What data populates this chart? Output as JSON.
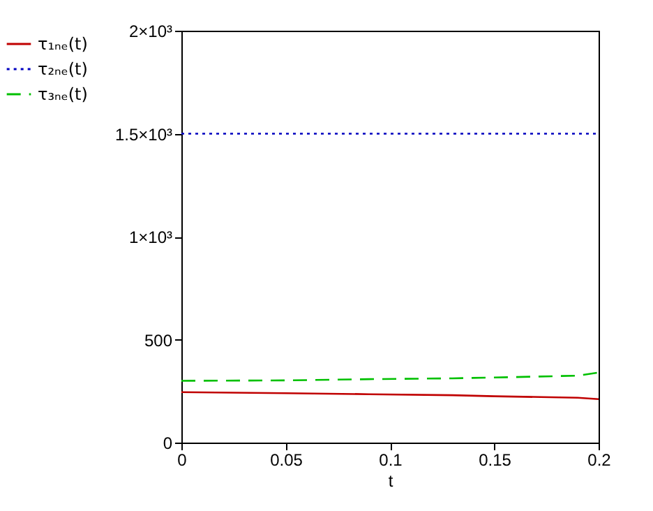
{
  "chart_data": {
    "type": "line",
    "xlabel": "t",
    "x": [
      0,
      0.05,
      0.09,
      0.13,
      0.15,
      0.19,
      0.2
    ],
    "series": [
      {
        "name": "τ₁ₙₑ(t)",
        "color": "#c00000",
        "line_style": "solid",
        "values": [
          245,
          240,
          235,
          230,
          225,
          218,
          211
        ]
      },
      {
        "name": "τ₂ₙₑ(t)",
        "color": "#0000c0",
        "line_style": "dotted",
        "values": [
          1500,
          1500,
          1500,
          1500,
          1500,
          1500,
          1500
        ]
      },
      {
        "name": "τ₃ₙₑ(t)",
        "color": "#00c000",
        "line_style": "dashed",
        "values": [
          300,
          302,
          308,
          312,
          316,
          325,
          340
        ]
      }
    ],
    "xlim": [
      0,
      0.2
    ],
    "xticks": [
      0,
      0.05,
      0.1,
      0.15,
      0.2
    ],
    "ylim": [
      0,
      2000
    ],
    "yticks": [
      0,
      500,
      {
        "value": 1000,
        "label": "1×10³"
      },
      {
        "value": 1500,
        "label": "1.5×10³"
      },
      {
        "value": 2000,
        "label": "2×10³"
      }
    ],
    "grid": false,
    "legend": "left",
    "marker": "none"
  }
}
